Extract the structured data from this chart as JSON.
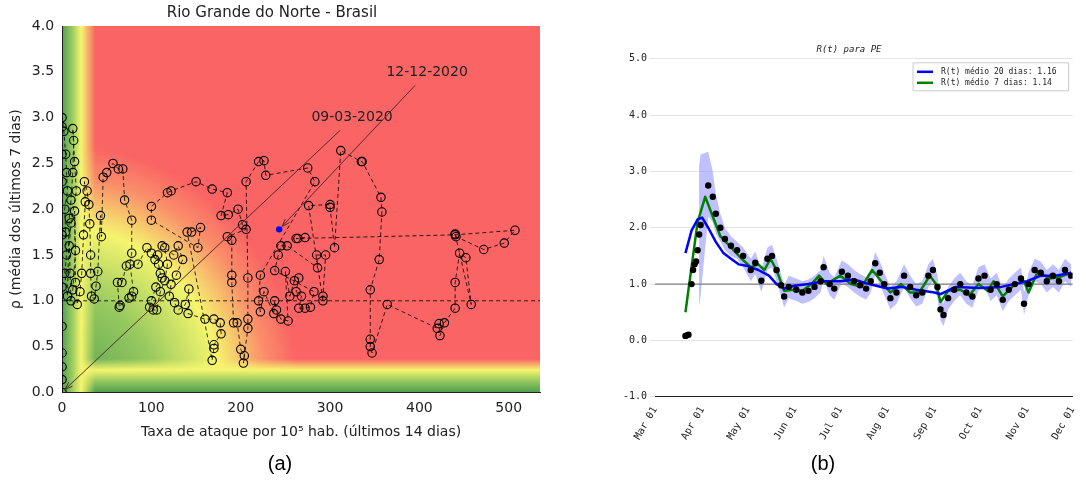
{
  "chart_data": [
    {
      "type": "line",
      "title": "Rio Grande do Norte - Brasil",
      "xlabel": "Taxa de ataque por 10⁵ hab. (últimos 14 dias)",
      "ylabel": "ρ (média dos últimos 7 dias)",
      "xlim": [
        0,
        535
      ],
      "xticks": [
        0,
        100,
        200,
        300,
        400,
        500
      ],
      "ylim": [
        0,
        4
      ],
      "yticks": [
        {
          "value": 0,
          "label": "0.0"
        },
        0.5,
        {
          "value": 1,
          "label": "1.0"
        },
        1.5,
        {
          "value": 2,
          "label": "2.0"
        },
        2.5,
        {
          "value": 3,
          "label": "3.0"
        },
        3.5,
        {
          "value": 4,
          "label": "4.0"
        }
      ],
      "ref_lines": [
        {
          "axis": "y",
          "value": 1,
          "color": "#000000",
          "line_style": "dashed"
        }
      ],
      "annotations": [
        {
          "text": "09-03-2020",
          "x": 0,
          "y": 0
        },
        {
          "text": "12-12-2020",
          "x": 243,
          "y": 1.78
        },
        "(a)"
      ],
      "series": [
        {
          "type": "line",
          "color": "#000000",
          "marker": "circle",
          "line_style": "dashed",
          "x": [
            0,
            0,
            0,
            0,
            0,
            0,
            0,
            0,
            0,
            0,
            0,
            2,
            4,
            5,
            6,
            3,
            4,
            5,
            3,
            6,
            8,
            10,
            12,
            13,
            12,
            14,
            16,
            10,
            8,
            9,
            10,
            12,
            15,
            14,
            15,
            17,
            20,
            22,
            24,
            26,
            25,
            28,
            30,
            31,
            32,
            32,
            33,
            36,
            38,
            40,
            43,
            44,
            46,
            50,
            57,
            63,
            68,
            70,
            78,
            78,
            76,
            80,
            78,
            75,
            65,
            64,
            62,
            67,
            72,
            85,
            95,
            100,
            104,
            107,
            108,
            110,
            112,
            105,
            100,
            98,
            102,
            106,
            110,
            115,
            118,
            115,
            112,
            125,
            130,
            135,
            128,
            122,
            120,
            126,
            130,
            138,
            142,
            141,
            160,
            170,
            177,
            178,
            170,
            170,
            168,
            140,
            145,
            155,
            152,
            100,
            100,
            118,
            122,
            150,
            168,
            185,
            178,
            186,
            197,
            202,
            206,
            185,
            190,
            190,
            190,
            192,
            196,
            200,
            204,
            203,
            208,
            208,
            208,
            206,
            220,
            226,
            228,
            275,
            283,
            222,
            220,
            222,
            226,
            237,
            238,
            240,
            245,
            253,
            250,
            255,
            260,
            265,
            262,
            268,
            265,
            272,
            278,
            282,
            238,
            242,
            245,
            252,
            286,
            285,
            295,
            292,
            292,
            276,
            300,
            300,
            305,
            312,
            335,
            336,
            357,
            358,
            355,
            345,
            345,
            345,
            347,
            364,
            420,
            422,
            423,
            428,
            440,
            440,
            445,
            452,
            458,
            440,
            441,
            472,
            495,
            507,
            440,
            262,
            264,
            272
          ],
          "values": [
            0,
            0.14,
            0.28,
            0.43,
            0.72,
            1.15,
            1.72,
            2.3,
            2.6,
            2.9,
            3.0,
            2.85,
            2.6,
            2.4,
            2.2,
            2.0,
            1.75,
            1.5,
            1.3,
            1.05,
            1.9,
            2.1,
            2.4,
            2.75,
            2.88,
            2.52,
            2.2,
            1.85,
            1.6,
            1.3,
            1.0,
            1.12,
            1.55,
            1.98,
            1.2,
            0.96,
            1.1,
            1.3,
            1.72,
            2.08,
            2.3,
            2.2,
            2.05,
            1.84,
            1.5,
            1.3,
            1.05,
            1.02,
            1.16,
            1.32,
            1.93,
            1.7,
            2.35,
            2.4,
            2.5,
            2.44,
            2.44,
            2.1,
            1.88,
            1.52,
            1.4,
            1.1,
            1.05,
            1.03,
            0.95,
            0.93,
            1.2,
            1.2,
            1.38,
            1.4,
            1.58,
            1.52,
            1.45,
            1.5,
            1.4,
            1.3,
            1.25,
            1.15,
            1.0,
            0.93,
            0.9,
            0.9,
            1.1,
            1.22,
            1.4,
            1.58,
            1.6,
            1.5,
            1.6,
            1.45,
            1.28,
            1.18,
            1.05,
            0.98,
            0.9,
            0.96,
            1.13,
            0.86,
            0.8,
            0.8,
            0.76,
            0.64,
            0.52,
            0.48,
            0.35,
            1.75,
            1.75,
            1.8,
            1.58,
            1.88,
            2.03,
            2.18,
            2.2,
            2.3,
            2.22,
            2.18,
            1.93,
            1.94,
            2.0,
            1.83,
            1.78,
            1.7,
            1.66,
            1.28,
            1.2,
            0.76,
            0.76,
            0.47,
            0.4,
            0.32,
            0.7,
            0.8,
            1.25,
            2.3,
            2.52,
            2.53,
            2.37,
            2.45,
            2.3,
            1.28,
            1.0,
            0.88,
            1.1,
            0.86,
            1.0,
            0.9,
            0.8,
            0.78,
            1.32,
            1.05,
            1.22,
            1.25,
            1.1,
            1.05,
            0.92,
            0.92,
            0.93,
            1.1,
            1.33,
            1.5,
            1.6,
            1.6,
            1.36,
            1.5,
            1.5,
            1.05,
            1.0,
            2.04,
            2.05,
            2.02,
            1.58,
            2.64,
            2.52,
            2.52,
            2.13,
            1.97,
            1.45,
            1.12,
            0.58,
            0.5,
            0.43,
            0.96,
            0.7,
            0.75,
            0.62,
            0.76,
            0.92,
            1.2,
            1.52,
            1.47,
            0.96,
            1.73,
            1.7,
            1.56,
            1.63,
            1.77,
            1.72,
            1.68,
            1.68,
            1.69
          ]
        },
        {
          "type": "scatter",
          "color": "#0000ff",
          "marker": "circle",
          "x": [
            243
          ],
          "values": [
            1.78
          ]
        }
      ]
    },
    {
      "type": "line",
      "title": "R(t) para PE",
      "grid": "y",
      "legend": "top right",
      "xlim": [
        "2020-03-01",
        "2020-12-01"
      ],
      "xticks": [
        {
          "value": "2020-03-01",
          "label": "Mar 01"
        },
        {
          "value": "2020-04-01",
          "label": "Apr 01"
        },
        {
          "value": "2020-05-01",
          "label": "May 01"
        },
        {
          "value": "2020-06-01",
          "label": "Jun 01"
        },
        {
          "value": "2020-07-01",
          "label": "Jul 01"
        },
        {
          "value": "2020-08-01",
          "label": "Aug 01"
        },
        {
          "value": "2020-09-01",
          "label": "Sep 01"
        },
        {
          "value": "2020-10-01",
          "label": "Oct 01"
        },
        {
          "value": "2020-11-01",
          "label": "Nov 01"
        },
        {
          "value": "2020-12-01",
          "label": "Dec 01"
        }
      ],
      "ylim": [
        -1,
        5
      ],
      "yticks": [
        {
          "value": -1,
          "label": "-1.0"
        },
        {
          "value": 0,
          "label": "0.0"
        },
        {
          "value": 1,
          "label": "1.0"
        },
        {
          "value": 2,
          "label": "2.0"
        },
        {
          "value": 3,
          "label": "3.0"
        },
        {
          "value": 4,
          "label": "4.0"
        },
        {
          "value": 5,
          "label": "5.0"
        }
      ],
      "ref_lines": [
        {
          "axis": "y",
          "value": 1,
          "color": "#808080",
          "line_style": "solid"
        }
      ],
      "annotations": [
        "(b)"
      ],
      "series": [
        {
          "type": "scatter",
          "color": "#000000",
          "marker": "circle",
          "x": [
            "2020-03-21",
            "2020-03-22",
            "2020-03-23",
            "2020-03-25",
            "2020-03-26",
            "2020-03-27",
            "2020-03-28",
            "2020-03-29",
            "2020-03-30",
            "2020-03-31",
            "2020-04-05",
            "2020-04-08",
            "2020-04-10",
            "2020-04-13",
            "2020-04-16",
            "2020-04-20",
            "2020-04-24",
            "2020-04-28",
            "2020-05-03",
            "2020-05-06",
            "2020-05-10",
            "2020-05-14",
            "2020-05-17",
            "2020-05-20",
            "2020-05-23",
            "2020-05-25",
            "2020-05-28",
            "2020-06-02",
            "2020-06-06",
            "2020-06-10",
            "2020-06-14",
            "2020-06-18",
            "2020-06-20",
            "2020-06-24",
            "2020-06-27",
            "2020-07-02",
            "2020-07-06",
            "2020-07-10",
            "2020-07-14",
            "2020-07-18",
            "2020-07-21",
            "2020-07-24",
            "2020-07-27",
            "2020-07-30",
            "2020-08-03",
            "2020-08-07",
            "2020-08-12",
            "2020-08-16",
            "2020-08-20",
            "2020-08-24",
            "2020-08-28",
            "2020-08-31",
            "2020-09-03",
            "2020-09-05",
            "2020-09-07",
            "2020-09-10",
            "2020-09-14",
            "2020-09-18",
            "2020-09-22",
            "2020-09-26",
            "2020-09-30",
            "2020-10-04",
            "2020-10-08",
            "2020-10-12",
            "2020-10-16",
            "2020-10-20",
            "2020-10-24",
            "2020-10-28",
            "2020-10-30",
            "2020-11-02",
            "2020-11-06",
            "2020-11-10",
            "2020-11-14",
            "2020-11-18",
            "2020-11-22",
            "2020-11-26",
            "2020-11-30"
          ],
          "values": [
            0.08,
            0.09,
            0.1,
            1.0,
            1.25,
            1.35,
            1.4,
            1.6,
            1.88,
            2.05,
            2.75,
            2.55,
            2.25,
            2.0,
            1.8,
            1.68,
            1.6,
            1.5,
            1.25,
            1.38,
            1.06,
            1.45,
            1.5,
            1.25,
            0.98,
            0.78,
            0.95,
            0.9,
            0.85,
            0.88,
            0.95,
            1.05,
            1.3,
            1.0,
            0.92,
            1.22,
            1.15,
            1.05,
            0.98,
            0.92,
            1.05,
            1.37,
            1.2,
            1.0,
            0.75,
            0.85,
            1.15,
            0.95,
            0.8,
            0.85,
            1.15,
            1.25,
            0.95,
            0.55,
            0.45,
            0.75,
            0.9,
            1.0,
            0.85,
            0.78,
            1.1,
            1.15,
            0.9,
            1.0,
            0.72,
            0.9,
            1.0,
            1.1,
            0.65,
            1.0,
            1.25,
            1.2,
            1.05,
            1.15,
            1.05,
            1.25,
            1.15
          ],
          "lower": [
            null,
            null,
            null,
            null,
            null,
            null,
            null,
            null,
            0.6,
            0.8,
            2.2,
            2.1,
            1.9,
            1.75,
            1.6,
            1.5,
            1.45,
            1.3,
            1.05,
            1.18,
            0.86,
            1.25,
            1.3,
            1.05,
            0.78,
            0.58,
            0.75,
            0.7,
            0.65,
            0.68,
            0.75,
            0.85,
            1.1,
            0.8,
            0.72,
            1.02,
            0.95,
            0.85,
            0.78,
            0.72,
            0.85,
            1.17,
            1.0,
            0.8,
            0.55,
            0.65,
            0.95,
            0.75,
            0.6,
            0.65,
            0.95,
            1.05,
            0.75,
            0.35,
            0.25,
            0.55,
            0.7,
            0.8,
            0.65,
            0.58,
            0.9,
            0.95,
            0.7,
            0.8,
            0.52,
            0.7,
            0.8,
            0.9,
            0.45,
            0.8,
            1.05,
            1.0,
            0.85,
            0.95,
            0.85,
            1.05,
            0.95
          ],
          "upper": [
            null,
            null,
            null,
            null,
            null,
            null,
            null,
            null,
            3.1,
            3.3,
            3.35,
            3.0,
            2.6,
            2.25,
            2.0,
            1.85,
            1.75,
            1.65,
            1.45,
            1.58,
            1.26,
            1.65,
            1.7,
            1.45,
            1.18,
            0.98,
            1.15,
            1.1,
            1.05,
            1.08,
            1.15,
            1.25,
            1.5,
            1.2,
            1.12,
            1.42,
            1.35,
            1.25,
            1.18,
            1.12,
            1.25,
            1.57,
            1.4,
            1.2,
            0.95,
            1.05,
            1.35,
            1.15,
            1.0,
            1.05,
            1.35,
            1.45,
            1.15,
            0.75,
            0.65,
            0.95,
            1.1,
            1.2,
            1.05,
            0.98,
            1.3,
            1.35,
            1.1,
            1.2,
            0.92,
            1.1,
            1.2,
            1.3,
            0.85,
            1.2,
            1.45,
            1.4,
            1.25,
            1.35,
            1.25,
            1.45,
            1.35
          ]
        },
        {
          "type": "line",
          "name": "R(t) médio 20 dias: 1.16",
          "color": "#0000ff",
          "marker": "none",
          "x": [
            "2020-03-21",
            "2020-03-25",
            "2020-03-29",
            "2020-04-01",
            "2020-04-05",
            "2020-04-10",
            "2020-04-15",
            "2020-04-20",
            "2020-04-25",
            "2020-05-01",
            "2020-05-08",
            "2020-05-15",
            "2020-05-20",
            "2020-05-25",
            "2020-06-01",
            "2020-06-10",
            "2020-06-20",
            "2020-07-01",
            "2020-07-10",
            "2020-07-20",
            "2020-08-01",
            "2020-08-10",
            "2020-08-20",
            "2020-09-01",
            "2020-09-05",
            "2020-09-15",
            "2020-10-01",
            "2020-10-15",
            "2020-11-01",
            "2020-11-10",
            "2020-11-20",
            "2020-11-30"
          ],
          "values": [
            1.55,
            1.95,
            2.15,
            2.18,
            2.0,
            1.75,
            1.55,
            1.45,
            1.35,
            1.32,
            1.25,
            1.15,
            1.0,
            0.92,
            0.97,
            1.0,
            1.05,
            1.05,
            1.08,
            1.0,
            0.92,
            0.95,
            0.9,
            0.85,
            0.82,
            0.95,
            0.93,
            0.95,
            1.05,
            1.15,
            1.15,
            1.2
          ]
        },
        {
          "type": "line",
          "name": "R(t) médio 7 dias: 1.14",
          "color": "#008000",
          "marker": "none",
          "x": [
            "2020-03-21",
            "2020-03-25",
            "2020-03-29",
            "2020-04-03",
            "2020-04-08",
            "2020-04-13",
            "2020-04-20",
            "2020-04-27",
            "2020-05-03",
            "2020-05-08",
            "2020-05-12",
            "2020-05-16",
            "2020-05-20",
            "2020-05-25",
            "2020-06-01",
            "2020-06-06",
            "2020-06-12",
            "2020-06-17",
            "2020-06-22",
            "2020-07-01",
            "2020-07-08",
            "2020-07-15",
            "2020-07-22",
            "2020-07-28",
            "2020-08-03",
            "2020-08-10",
            "2020-08-16",
            "2020-08-22",
            "2020-08-29",
            "2020-09-02",
            "2020-09-05",
            "2020-09-10",
            "2020-09-18",
            "2020-09-24",
            "2020-09-30",
            "2020-10-06",
            "2020-10-10",
            "2020-10-16",
            "2020-10-24",
            "2020-10-30",
            "2020-11-02",
            "2020-11-08",
            "2020-11-16",
            "2020-11-22",
            "2020-11-30"
          ],
          "values": [
            0.5,
            1.3,
            2.1,
            2.55,
            2.2,
            1.85,
            1.65,
            1.45,
            1.3,
            1.35,
            1.25,
            1.45,
            1.25,
            0.88,
            0.9,
            0.88,
            1.0,
            1.15,
            1.0,
            1.15,
            1.0,
            0.95,
            1.25,
            1.05,
            0.85,
            1.0,
            0.85,
            0.85,
            1.15,
            1.0,
            0.68,
            0.88,
            0.9,
            0.8,
            1.0,
            0.88,
            1.05,
            0.78,
            1.0,
            1.05,
            0.85,
            1.22,
            1.1,
            1.12,
            1.2
          ]
        }
      ]
    }
  ]
}
